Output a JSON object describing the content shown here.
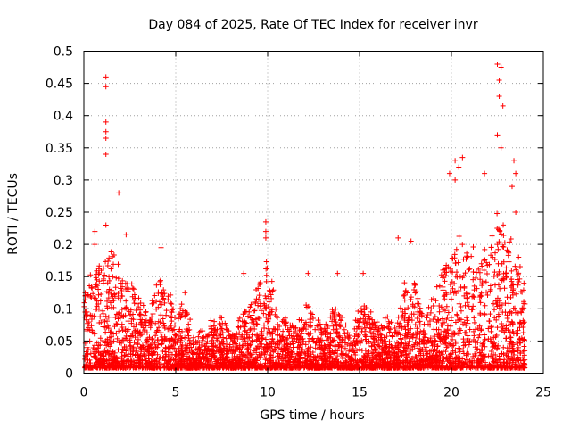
{
  "chart_data": {
    "type": "scatter",
    "title": "Day 084 of 2025, Rate Of TEC Index for receiver invr",
    "xlabel": "GPS time / hours",
    "ylabel": "ROTI / TECUs",
    "xlim": [
      0,
      25
    ],
    "ylim": [
      0,
      0.5
    ],
    "x_ticks": [
      "0",
      "5",
      "10",
      "15",
      "20",
      "25"
    ],
    "y_ticks": [
      "0",
      "0.05",
      "0.1",
      "0.15",
      "0.2",
      "0.25",
      "0.3",
      "0.35",
      "0.4",
      "0.45",
      "0.5"
    ],
    "grid": true,
    "marker": "+",
    "color": "#ff0000",
    "duration_hours": 24,
    "series": [
      {
        "name": "ROTI",
        "notable_points": [
          {
            "x": 1.2,
            "y": 0.46
          },
          {
            "x": 1.2,
            "y": 0.445
          },
          {
            "x": 1.2,
            "y": 0.39
          },
          {
            "x": 1.2,
            "y": 0.375
          },
          {
            "x": 1.2,
            "y": 0.365
          },
          {
            "x": 1.2,
            "y": 0.34
          },
          {
            "x": 1.2,
            "y": 0.23
          },
          {
            "x": 1.9,
            "y": 0.28
          },
          {
            "x": 2.3,
            "y": 0.215
          },
          {
            "x": 0.6,
            "y": 0.22
          },
          {
            "x": 0.6,
            "y": 0.2
          },
          {
            "x": 4.2,
            "y": 0.195
          },
          {
            "x": 9.9,
            "y": 0.235
          },
          {
            "x": 9.9,
            "y": 0.22
          },
          {
            "x": 9.9,
            "y": 0.21
          },
          {
            "x": 20.2,
            "y": 0.33
          },
          {
            "x": 20.2,
            "y": 0.3
          },
          {
            "x": 20.6,
            "y": 0.335
          },
          {
            "x": 20.4,
            "y": 0.32
          },
          {
            "x": 19.9,
            "y": 0.31
          },
          {
            "x": 21.8,
            "y": 0.31
          },
          {
            "x": 22.5,
            "y": 0.48
          },
          {
            "x": 22.6,
            "y": 0.455
          },
          {
            "x": 22.7,
            "y": 0.475
          },
          {
            "x": 22.6,
            "y": 0.43
          },
          {
            "x": 22.8,
            "y": 0.415
          },
          {
            "x": 22.5,
            "y": 0.37
          },
          {
            "x": 22.7,
            "y": 0.35
          },
          {
            "x": 23.4,
            "y": 0.33
          },
          {
            "x": 23.5,
            "y": 0.31
          },
          {
            "x": 23.3,
            "y": 0.29
          },
          {
            "x": 23.5,
            "y": 0.25
          },
          {
            "x": 17.8,
            "y": 0.205
          },
          {
            "x": 17.1,
            "y": 0.21
          },
          {
            "x": 12.2,
            "y": 0.155
          },
          {
            "x": 13.8,
            "y": 0.155
          },
          {
            "x": 15.2,
            "y": 0.155
          },
          {
            "x": 8.7,
            "y": 0.155
          },
          {
            "x": 5.5,
            "y": 0.125
          }
        ],
        "envelope": [
          {
            "x": 0.0,
            "y": 0.12
          },
          {
            "x": 0.5,
            "y": 0.17
          },
          {
            "x": 1.0,
            "y": 0.17
          },
          {
            "x": 1.5,
            "y": 0.19
          },
          {
            "x": 2.0,
            "y": 0.17
          },
          {
            "x": 2.5,
            "y": 0.15
          },
          {
            "x": 3.0,
            "y": 0.12
          },
          {
            "x": 3.5,
            "y": 0.09
          },
          {
            "x": 4.0,
            "y": 0.15
          },
          {
            "x": 4.5,
            "y": 0.14
          },
          {
            "x": 5.0,
            "y": 0.1
          },
          {
            "x": 5.5,
            "y": 0.12
          },
          {
            "x": 6.0,
            "y": 0.06
          },
          {
            "x": 6.5,
            "y": 0.07
          },
          {
            "x": 7.0,
            "y": 0.09
          },
          {
            "x": 7.5,
            "y": 0.09
          },
          {
            "x": 8.0,
            "y": 0.06
          },
          {
            "x": 8.5,
            "y": 0.09
          },
          {
            "x": 9.0,
            "y": 0.1
          },
          {
            "x": 9.5,
            "y": 0.14
          },
          {
            "x": 10.0,
            "y": 0.18
          },
          {
            "x": 10.5,
            "y": 0.1
          },
          {
            "x": 11.0,
            "y": 0.09
          },
          {
            "x": 11.5,
            "y": 0.07
          },
          {
            "x": 12.0,
            "y": 0.11
          },
          {
            "x": 12.5,
            "y": 0.1
          },
          {
            "x": 13.0,
            "y": 0.07
          },
          {
            "x": 13.5,
            "y": 0.1
          },
          {
            "x": 14.0,
            "y": 0.1
          },
          {
            "x": 14.5,
            "y": 0.06
          },
          {
            "x": 15.0,
            "y": 0.11
          },
          {
            "x": 15.5,
            "y": 0.1
          },
          {
            "x": 16.0,
            "y": 0.08
          },
          {
            "x": 16.5,
            "y": 0.09
          },
          {
            "x": 17.0,
            "y": 0.07
          },
          {
            "x": 17.5,
            "y": 0.15
          },
          {
            "x": 18.0,
            "y": 0.14
          },
          {
            "x": 18.5,
            "y": 0.1
          },
          {
            "x": 19.0,
            "y": 0.12
          },
          {
            "x": 19.5,
            "y": 0.16
          },
          {
            "x": 20.0,
            "y": 0.18
          },
          {
            "x": 20.5,
            "y": 0.22
          },
          {
            "x": 21.0,
            "y": 0.2
          },
          {
            "x": 21.5,
            "y": 0.19
          },
          {
            "x": 22.0,
            "y": 0.2
          },
          {
            "x": 22.5,
            "y": 0.25
          },
          {
            "x": 23.0,
            "y": 0.23
          },
          {
            "x": 23.5,
            "y": 0.2
          },
          {
            "x": 24.0,
            "y": 0.14
          }
        ]
      }
    ]
  }
}
